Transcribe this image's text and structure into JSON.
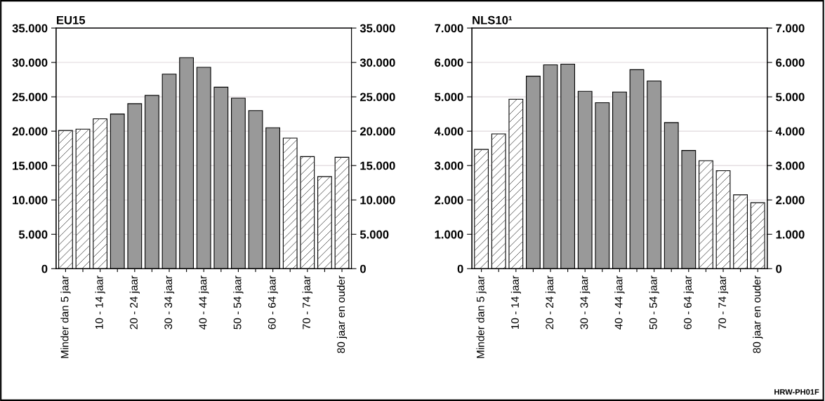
{
  "chart_data": [
    {
      "type": "bar",
      "title": "EU15",
      "categories": [
        "Minder dan 5 jaar",
        null,
        "10 - 14 jaar",
        null,
        "20 - 24 jaar",
        null,
        "30 - 34 jaar",
        null,
        "40 - 44 jaar",
        null,
        "50 - 54 jaar",
        null,
        "60 - 64 jaar",
        null,
        "70 - 74 jaar",
        null,
        "80 jaar en ouder"
      ],
      "values": [
        20100,
        20300,
        21800,
        22500,
        24000,
        25200,
        28300,
        30700,
        29300,
        26400,
        24800,
        23000,
        20500,
        19000,
        16300,
        13400,
        16200
      ],
      "colors": [
        "#ffffff",
        "#ffffff",
        "#ffffff",
        "#999999",
        "#999999",
        "#999999",
        "#999999",
        "#999999",
        "#999999",
        "#999999",
        "#999999",
        "#999999",
        "#999999",
        "#ffffff",
        "#ffffff",
        "#ffffff",
        "#ffffff"
      ],
      "ylim": [
        0,
        35000
      ],
      "yticks": [
        0,
        {
          "value": 5000,
          "label": "5.000"
        },
        {
          "value": 10000,
          "label": "10.000"
        },
        {
          "value": 15000,
          "label": "15.000"
        },
        {
          "value": 20000,
          "label": "20.000"
        },
        {
          "value": 25000,
          "label": "25.000"
        },
        {
          "value": 30000,
          "label": "30.000"
        },
        {
          "value": 35000,
          "label": "35.000"
        }
      ],
      "y2lim": [
        0,
        35000
      ],
      "y2ticks": [
        0,
        {
          "value": 5000,
          "label": "5.000"
        },
        {
          "value": 10000,
          "label": "10.000"
        },
        {
          "value": 15000,
          "label": "15.000"
        },
        {
          "value": 20000,
          "label": "20.000"
        },
        {
          "value": 25000,
          "label": "25.000"
        },
        {
          "value": 30000,
          "label": "30.000"
        },
        {
          "value": 35000,
          "label": "35.000"
        }
      ],
      "grid": "y"
    },
    {
      "type": "bar",
      "title": "NLS10¹",
      "categories": [
        "Minder dan 5 jaar",
        null,
        "10 - 14 jaar",
        null,
        "20 - 24 jaar",
        null,
        "30 - 34 jaar",
        null,
        "40 - 44 jaar",
        null,
        "50 - 54 jaar",
        null,
        "60 - 64 jaar",
        null,
        "70 - 74 jaar",
        null,
        "80 jaar en ouder"
      ],
      "values": [
        3470,
        3920,
        4930,
        5600,
        5930,
        5950,
        5160,
        4830,
        5140,
        5790,
        5460,
        4250,
        3440,
        3140,
        2850,
        2150,
        1920
      ],
      "colors": [
        "#ffffff",
        "#ffffff",
        "#ffffff",
        "#999999",
        "#999999",
        "#999999",
        "#999999",
        "#999999",
        "#999999",
        "#999999",
        "#999999",
        "#999999",
        "#999999",
        "#ffffff",
        "#ffffff",
        "#ffffff",
        "#ffffff"
      ],
      "ylim": [
        0,
        7000
      ],
      "yticks": [
        0,
        {
          "value": 1000,
          "label": "1.000"
        },
        {
          "value": 2000,
          "label": "2.000"
        },
        {
          "value": 3000,
          "label": "3.000"
        },
        {
          "value": 4000,
          "label": "4.000"
        },
        {
          "value": 5000,
          "label": "5.000"
        },
        {
          "value": 6000,
          "label": "6.000"
        },
        {
          "value": 7000,
          "label": "7.000"
        }
      ],
      "y2lim": [
        0,
        7000
      ],
      "y2ticks": [
        0,
        {
          "value": 1000,
          "label": "1.000"
        },
        {
          "value": 2000,
          "label": "2.000"
        },
        {
          "value": 3000,
          "label": "3.000"
        },
        {
          "value": 4000,
          "label": "4.000"
        },
        {
          "value": 5000,
          "label": "5.000"
        },
        {
          "value": 6000,
          "label": "6.000"
        },
        {
          "value": 7000,
          "label": "7.000"
        }
      ],
      "grid": "y",
      "annotations": [
        "HRW-PH01F"
      ]
    }
  ]
}
